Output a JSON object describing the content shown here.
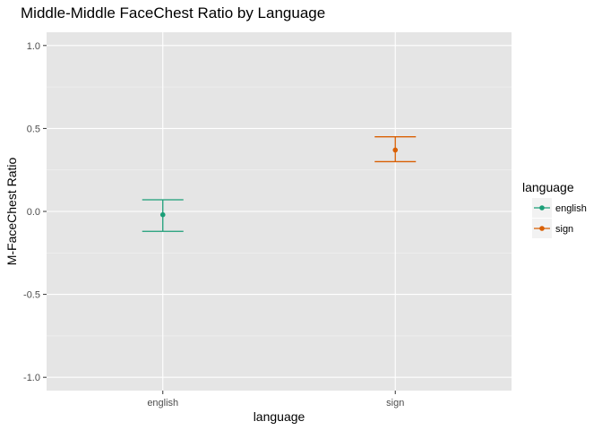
{
  "chart_data": {
    "type": "scatter",
    "subtype": "point-with-error-bars",
    "title": "Middle-Middle FaceChest Ratio by Language",
    "xlabel": "language",
    "ylabel": "M-FaceChest Ratio",
    "categories": [
      "english",
      "sign"
    ],
    "ylim": [
      -1.08,
      1.08
    ],
    "y_ticks": [
      1.0,
      0.5,
      0.0,
      -0.5,
      -1.0
    ],
    "y_tick_labels": [
      "1.0",
      "0.5",
      "0.0",
      "-0.5",
      "-1.0"
    ],
    "grid": true,
    "legend": {
      "title": "language",
      "placement": "right",
      "entries": [
        "english",
        "sign"
      ]
    },
    "series": [
      {
        "name": "english",
        "color": "#1b9e77",
        "mean": -0.02,
        "lower": -0.12,
        "upper": 0.07
      },
      {
        "name": "sign",
        "color": "#d95f02",
        "mean": 0.37,
        "lower": 0.3,
        "upper": 0.45
      }
    ]
  }
}
